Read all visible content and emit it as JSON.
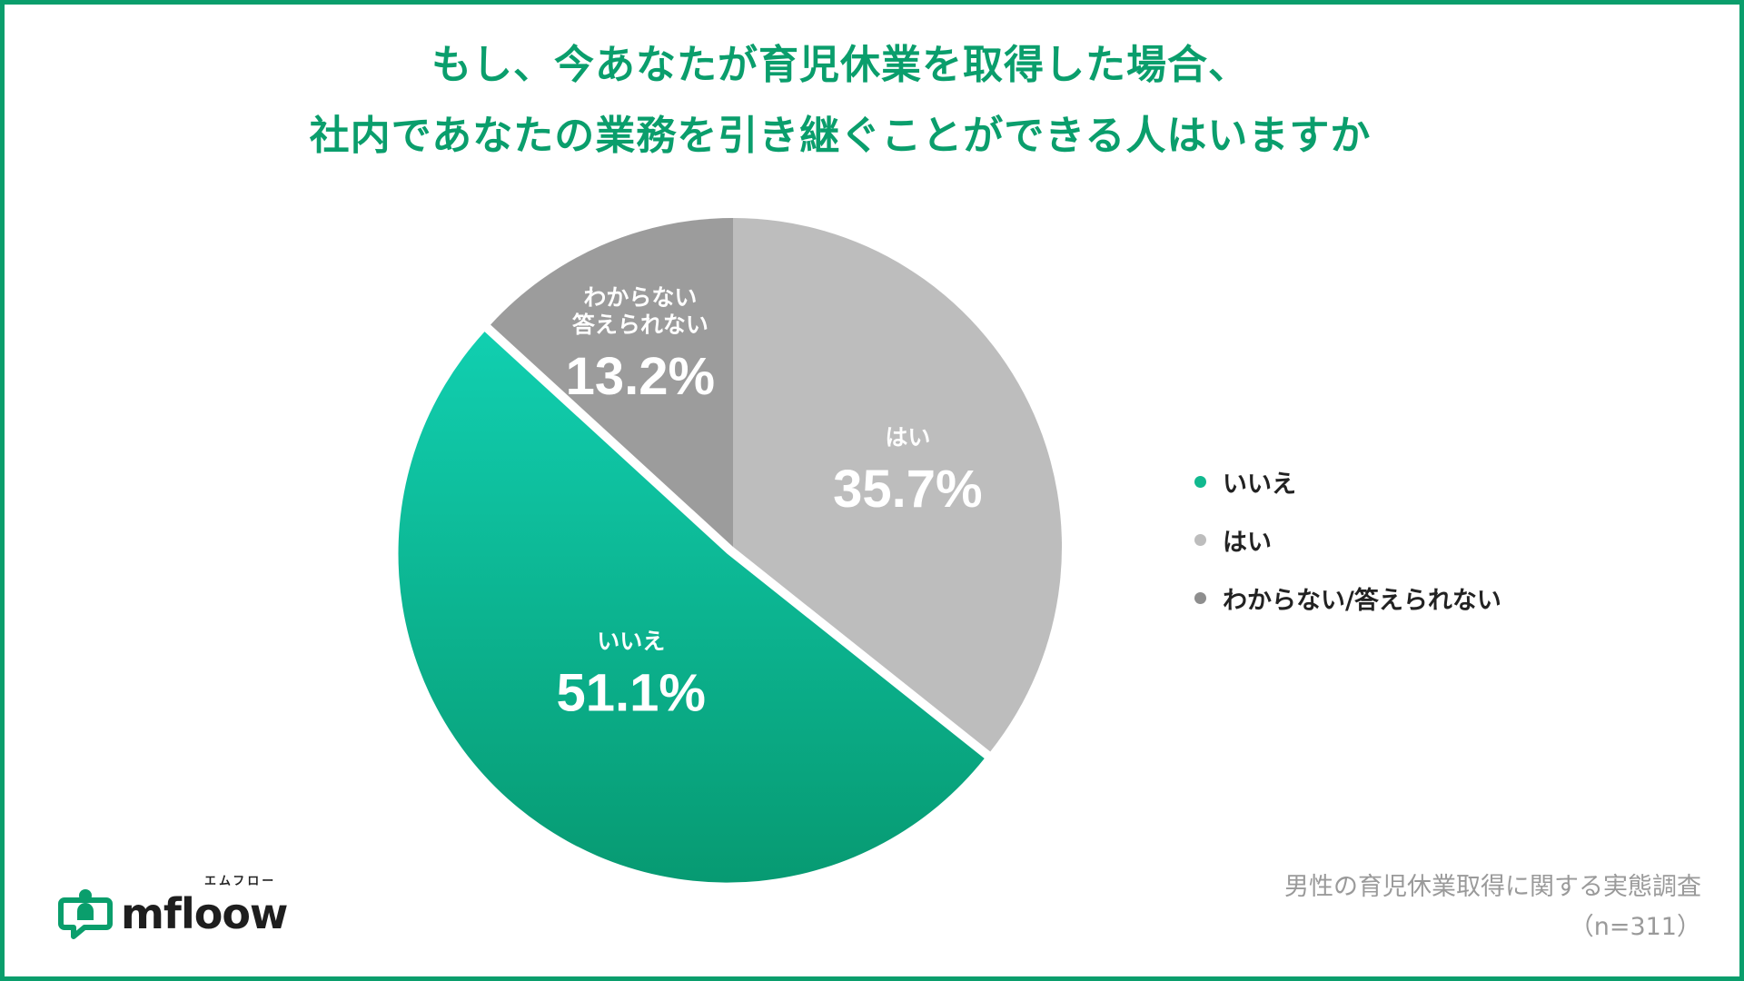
{
  "title": {
    "line1": "もし、今あなたが育児休業を取得した場合、",
    "line2": "社内であなたの業務を引き継ぐことができる人はいますか"
  },
  "chart_data": {
    "type": "pie",
    "title": "もし、今あなたが育児休業を取得した場合、社内であなたの業務を引き継ぐことができる人はいますか",
    "start_direction": "top, clockwise",
    "slices": [
      {
        "key": "hai",
        "label": "はい",
        "value": 35.7,
        "display": "35.7%",
        "color": "#bdbdbd"
      },
      {
        "key": "iie",
        "label": "いいえ",
        "value": 51.1,
        "display": "51.1%",
        "color_top": "#11cfb0",
        "color_bottom": "#079a72"
      },
      {
        "key": "wakaranai",
        "label_lines": [
          "わからない",
          "答えられない"
        ],
        "value": 13.2,
        "display": "13.2%",
        "color": "#9c9c9c"
      }
    ],
    "legend_placement": "right",
    "legend": [
      {
        "label": "いいえ",
        "color": "#11b98f"
      },
      {
        "label": "はい",
        "color": "#bdbdbd"
      },
      {
        "label": "わからない/答えられない",
        "color": "#8e8e8e"
      }
    ]
  },
  "source": {
    "line1": "男性の育児休業取得に関する実態調査",
    "line2": "（n=311）"
  },
  "logo": {
    "text": "mfloow",
    "ruby": "エムフロー",
    "icon": "speech-bubble-person-icon",
    "color": "#0a9e6c"
  }
}
